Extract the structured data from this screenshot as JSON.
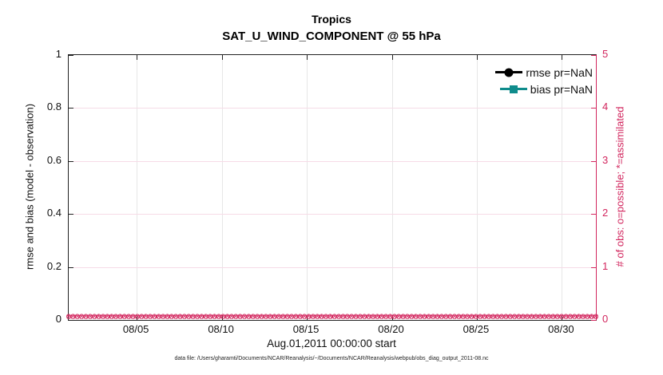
{
  "figure": {
    "title": "Tropics",
    "subtitle": "SAT_U_WIND_COMPONENT @ 55 hPa",
    "xlabel": "Aug.01,2011 00:00:00 start",
    "footer": "data file: /Users/gharamti/Documents/NCAR/Reanalysis/~/Documents/NCAR/Reanalysis/webpub/obs_diag_output_2011-08.nc"
  },
  "colors": {
    "obs_accent": "#d2265e",
    "obs_gridline": "#f6dbe7",
    "x_gridline": "#e7e7e7",
    "rmse_series": "#000000",
    "bias_series": "#0f8c8c",
    "axis": "#222222"
  },
  "legend": {
    "items": [
      {
        "label": "rmse pr=NaN",
        "marker": "filled-circle",
        "color": "#000000"
      },
      {
        "label": "bias pr=NaN",
        "marker": "filled-square",
        "color": "#0f8c8c"
      }
    ]
  },
  "chart_data": {
    "type": "line",
    "title": "Tropics",
    "subtitle": "SAT_U_WIND_COMPONENT @ 55 hPa",
    "grid": true,
    "x_axis": {
      "label": "Aug.01,2011 00:00:00 start",
      "tick_labels": [
        "08/05",
        "08/10",
        "08/15",
        "08/20",
        "08/25",
        "08/30"
      ],
      "tick_positions_days": [
        4,
        9,
        14,
        19,
        24,
        29
      ],
      "range_days": [
        0,
        31
      ]
    },
    "left_axis": {
      "label": "rmse and bias (model - observation)",
      "ticks": [
        0,
        0.2,
        0.4,
        0.6,
        0.8,
        1
      ],
      "range": [
        0,
        1
      ],
      "color": "#000000"
    },
    "right_axis": {
      "label": "# of obs: o=possible; *=assimilated",
      "ticks": [
        0,
        1,
        2,
        3,
        4,
        5
      ],
      "range": [
        0,
        5
      ],
      "color": "#d2265e"
    },
    "series": [
      {
        "name": "rmse pr=NaN",
        "axis": "left",
        "marker": "circle",
        "color": "#000000",
        "values_all": "NaN",
        "plotted": false
      },
      {
        "name": "bias pr=NaN",
        "axis": "left",
        "marker": "square",
        "color": "#0f8c8c",
        "values_all": "NaN",
        "plotted": false
      },
      {
        "name": "possible obs count (o)",
        "axis": "right",
        "marker": "o",
        "color": "#d2265e",
        "constant_value": 0,
        "n_points": 124
      },
      {
        "name": "assimilated obs count (*)",
        "axis": "right",
        "marker": "*",
        "color": "#d2265e",
        "constant_value": 0,
        "n_points": 124
      }
    ],
    "legend_position": "top-right-inside"
  }
}
